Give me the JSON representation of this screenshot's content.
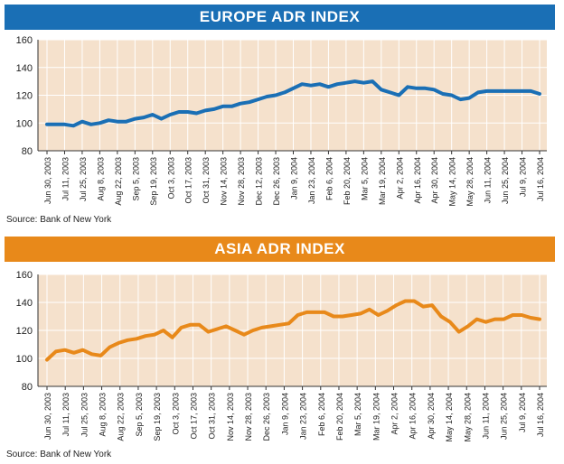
{
  "colors": {
    "europe_accent": "#1a6fb5",
    "asia_accent": "#e8891a",
    "plot_background": "#f5e1cc",
    "grid": "#ffffff"
  },
  "chart_data": [
    {
      "type": "line",
      "title": "EUROPE ADR INDEX",
      "source": "Source: Bank of New York",
      "ylim": [
        80,
        160
      ],
      "yticks": [
        80,
        100,
        120,
        140,
        160
      ],
      "grid": true,
      "x_tick_labels": [
        "Jun 30, 2003",
        "Jul 11, 2003",
        "Jul 25, 2003",
        "Aug 8, 2003",
        "Aug 22, 2003",
        "Sep 5, 2003",
        "Sep 19, 2003",
        "Oct 3, 2003",
        "Oct 17, 2003",
        "Oct 31, 2003",
        "Nov 14, 2003",
        "Nov 28, 2003",
        "Dec 12, 2003",
        "Dec 26, 2003",
        "Jan 9, 2004",
        "Jan 23, 2004",
        "Feb 6, 2004",
        "Feb 20, 2004",
        "Mar 5, 2004",
        "Mar 19, 2004",
        "Apr 2, 2004",
        "Apr 16, 2004",
        "Apr 30, 2004",
        "May 14, 2004",
        "May 28, 2004",
        "Jun 11, 2004",
        "Jun 25, 2004",
        "Jul 9, 2004",
        "Jul 16, 2004"
      ],
      "values": [
        99,
        99,
        99,
        98,
        101,
        99,
        100,
        102,
        101,
        101,
        103,
        104,
        106,
        103,
        106,
        108,
        108,
        107,
        109,
        110,
        112,
        112,
        114,
        115,
        117,
        119,
        120,
        122,
        125,
        128,
        127,
        128,
        126,
        128,
        129,
        130,
        129,
        130,
        124,
        122,
        120,
        126,
        125,
        125,
        124,
        121,
        120,
        117,
        118,
        122,
        123,
        123,
        123,
        123,
        123,
        123,
        121
      ]
    },
    {
      "type": "line",
      "title": "ASIA ADR INDEX",
      "source": "Source: Bank of New York",
      "ylim": [
        80,
        160
      ],
      "yticks": [
        80,
        100,
        120,
        140,
        160
      ],
      "grid": true,
      "x_tick_labels": [
        "Jun 30, 2003",
        "Jul 11, 2003",
        "Jul 25, 2003",
        "Aug 8, 2003",
        "Aug 22, 2003",
        "Sep 5, 2003",
        "Sep 19, 2003",
        "Oct 3, 2003",
        "Oct 17, 2003",
        "Oct 31, 2003",
        "Nov 14, 2003",
        "Nov 28, 2003",
        "Dec 26, 2003",
        "Jan 9, 2004",
        "Jan 23, 2004",
        "Feb 6, 2004",
        "Feb 20, 2004",
        "Mar 5, 2004",
        "Mar 19, 2004",
        "Apr 2, 2004",
        "Apr 16, 2004",
        "Apr 30, 2004",
        "May 14, 2004",
        "May 28, 2004",
        "Jun 11, 2004",
        "Jun 25, 2004",
        "Jul 9, 2004",
        "Jul 16, 2004"
      ],
      "values": [
        99,
        105,
        106,
        104,
        106,
        103,
        102,
        108,
        111,
        113,
        114,
        116,
        117,
        120,
        115,
        122,
        124,
        124,
        119,
        121,
        123,
        120,
        117,
        120,
        122,
        123,
        124,
        125,
        131,
        133,
        133,
        133,
        130,
        130,
        131,
        132,
        135,
        131,
        134,
        138,
        141,
        141,
        137,
        138,
        130,
        126,
        119,
        123,
        128,
        126,
        128,
        128,
        131,
        131,
        129,
        128
      ]
    }
  ]
}
